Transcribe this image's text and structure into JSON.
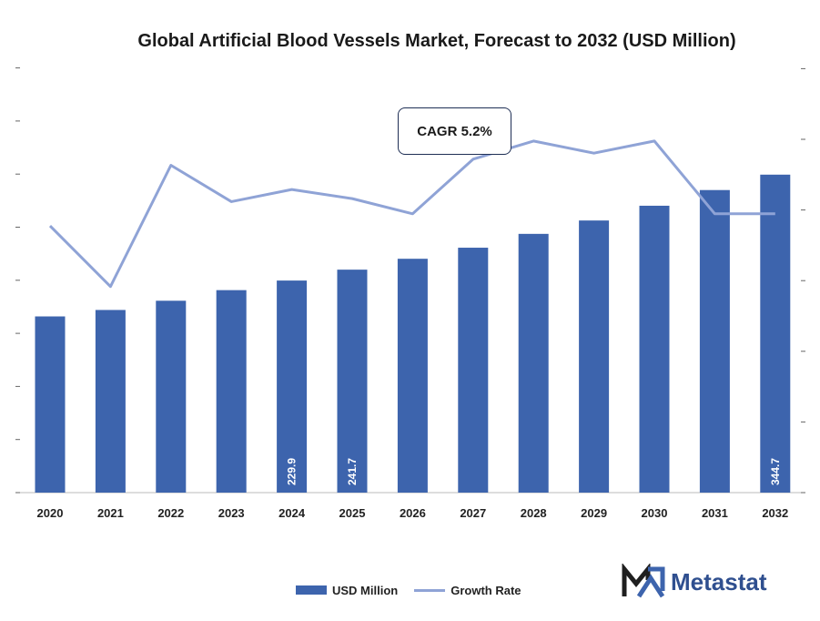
{
  "title": "Global Artificial Blood Vessels Market, Forecast to 2032 (USD Million)",
  "annotation": "CAGR 5.2%",
  "colors": {
    "bar": "#3d64ad",
    "line": "#8fa3d6",
    "title": "#1a1a1a",
    "logo": "#2f4f8f"
  },
  "logo": {
    "text": "Metastat",
    "icon": "metastat-m-icon"
  },
  "chart_data": {
    "type": "bar",
    "title": "Global Artificial Blood Vessels Market, Forecast to 2032 (USD Million)",
    "categories": [
      "2020",
      "2021",
      "2022",
      "2023",
      "2024",
      "2025",
      "2026",
      "2027",
      "2028",
      "2029",
      "2030",
      "2031",
      "2032"
    ],
    "series": [
      {
        "name": "USD Million",
        "type": "bar",
        "values": [
          191.0,
          198.0,
          208.0,
          219.5,
          229.9,
          241.7,
          253.5,
          265.5,
          280.5,
          295.0,
          311.0,
          328.0,
          344.7
        ],
        "data_labels": {
          "4": "229.9",
          "5": "241.7",
          "12": "344.7"
        }
      },
      {
        "name": "Growth Rate",
        "type": "line",
        "values": [
          4.4,
          3.4,
          5.4,
          4.8,
          5.0,
          4.85,
          4.6,
          5.5,
          5.8,
          5.6,
          5.8,
          4.6,
          4.6
        ]
      }
    ],
    "ylim_left": [
      0,
      460
    ],
    "ylim_right": [
      0,
      7
    ],
    "annotation": "CAGR 5.2%",
    "legend": {
      "position": "bottom",
      "items": [
        "USD Million",
        "Growth Rate"
      ]
    },
    "grid": false
  }
}
